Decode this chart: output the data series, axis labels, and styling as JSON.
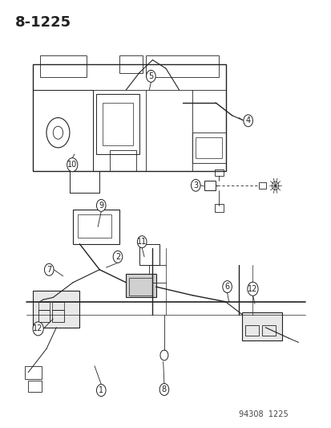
{
  "title": "8-1225",
  "footer": "94308  1225",
  "bg_color": "#ffffff",
  "line_color": "#222222",
  "title_fontsize": 13,
  "footer_fontsize": 7,
  "callout_fontsize": 7
}
